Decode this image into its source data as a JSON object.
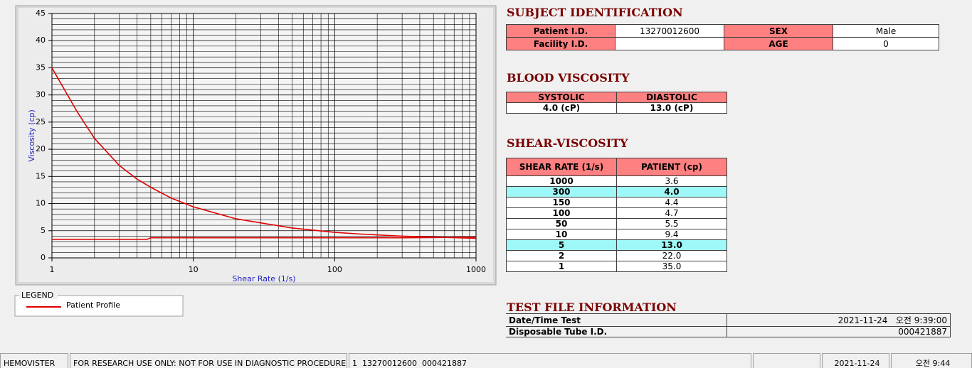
{
  "chart_data": {
    "type": "line",
    "x_label": "Shear Rate (1/s)",
    "y_label": "Viscosity (cp)",
    "x_scale": "log",
    "xlim": [
      1,
      1000
    ],
    "ylim": [
      0,
      45
    ],
    "xticks": [
      1,
      10,
      100,
      1000
    ],
    "yticks": [
      0,
      5,
      10,
      15,
      20,
      25,
      30,
      35,
      40,
      45
    ],
    "grid": true,
    "legend_title": "LEGEND",
    "series": [
      {
        "name": "Patient Profile",
        "color": "#e00000",
        "x": [
          1,
          1.5,
          2,
          3,
          4,
          5,
          7,
          10,
          20,
          50,
          100,
          150,
          300,
          1000
        ],
        "values": [
          35,
          27,
          22,
          17,
          14.5,
          13,
          11,
          9.4,
          7.2,
          5.5,
          4.7,
          4.4,
          4.0,
          3.6
        ]
      },
      {
        "color": "#e00000",
        "x": [
          1,
          4.7,
          5,
          300,
          1000
        ],
        "values": [
          3.4,
          3.4,
          3.7,
          3.7,
          3.8
        ]
      }
    ]
  },
  "subject": {
    "title": "SUBJECT IDENTIFICATION",
    "patient_id_label": "Patient I.D.",
    "patient_id": "13270012600",
    "sex_label": "SEX",
    "sex": "Male",
    "facility_label": "Facility I.D.",
    "age_label": "AGE",
    "age": "0"
  },
  "blood": {
    "title": "BLOOD VISCOSITY",
    "headers": [
      "SYSTOLIC",
      "DIASTOLIC"
    ],
    "values": [
      "4.0 (cP)",
      "13.0 (cP)"
    ]
  },
  "shear": {
    "title": "SHEAR-VISCOSITY",
    "headers": [
      "SHEAR RATE (1/s)",
      "PATIENT (cp)"
    ],
    "rows": [
      {
        "rate": "1000",
        "patient": "3.6",
        "highlight": false
      },
      {
        "rate": "300",
        "patient": "4.0",
        "highlight": true
      },
      {
        "rate": "150",
        "patient": "4.4",
        "highlight": false
      },
      {
        "rate": "100",
        "patient": "4.7",
        "highlight": false
      },
      {
        "rate": "50",
        "patient": "5.5",
        "highlight": false
      },
      {
        "rate": "10",
        "patient": "9.4",
        "highlight": false
      },
      {
        "rate": "5",
        "patient": "13.0",
        "highlight": true
      },
      {
        "rate": "2",
        "patient": "22.0",
        "highlight": false
      },
      {
        "rate": "1",
        "patient": "35.0",
        "highlight": false
      }
    ]
  },
  "test_file": {
    "title": "TEST FILE INFORMATION",
    "rows": [
      [
        "Date/Time Test",
        "2021-11-24   오전 9:39:00"
      ],
      [
        "Disposable Tube I.D.",
        "000421887"
      ]
    ]
  },
  "status_bar": [
    "HEMOVISTER",
    "FOR RESEARCH USE ONLY: NOT FOR USE IN DIAGNOSTIC PROCEDURES",
    "1  13270012600  000421887",
    "2021-11-24",
    "오전 9:44"
  ]
}
